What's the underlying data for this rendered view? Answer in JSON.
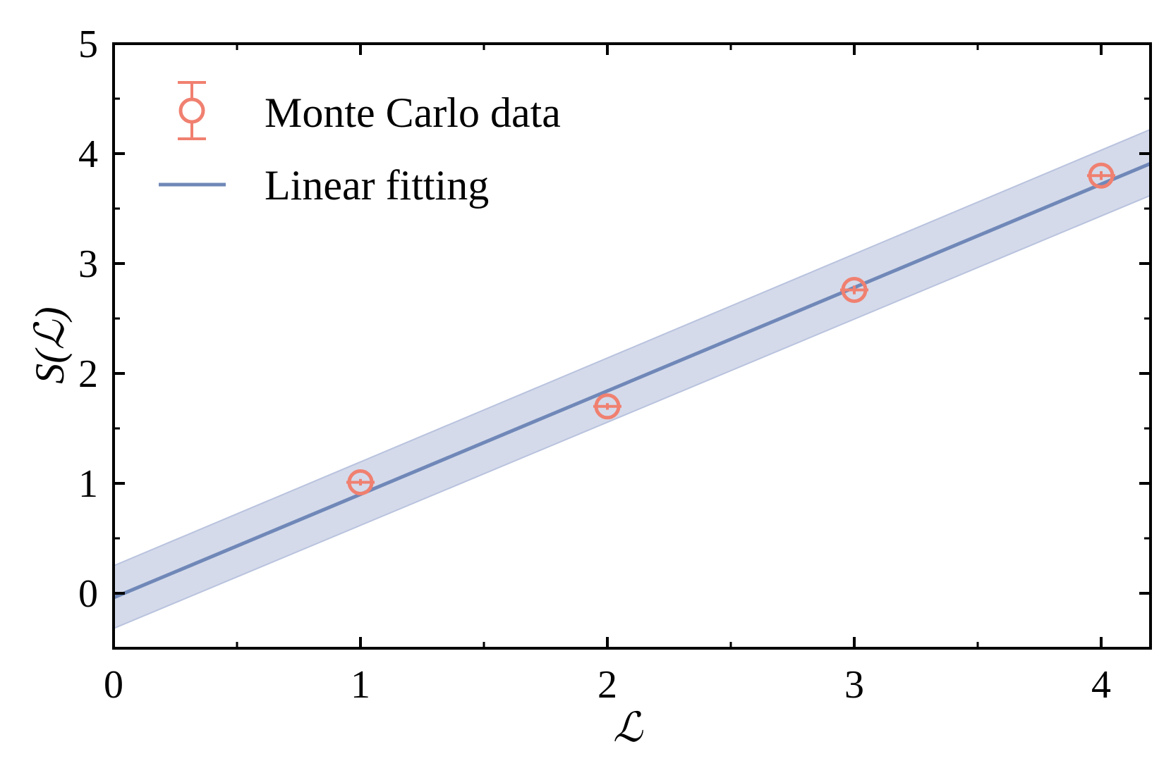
{
  "chart_data": {
    "type": "scatter",
    "title": "",
    "xlabel": "ℒ",
    "ylabel": "S(ℒ)",
    "xlim": [
      0,
      4.2
    ],
    "ylim": [
      -0.5,
      5
    ],
    "xticks": [
      0,
      1,
      2,
      3,
      4
    ],
    "yticks": [
      0,
      1,
      2,
      3,
      4,
      5
    ],
    "grid": false,
    "legend_position": "top-left",
    "series": [
      {
        "name": "Monte Carlo data",
        "kind": "errorbar",
        "marker": "open-circle",
        "color": "#F08070",
        "x": [
          1,
          2,
          3,
          4
        ],
        "y": [
          1.01,
          1.7,
          2.76,
          3.8
        ],
        "yerr": [
          0.03,
          0.03,
          0.04,
          0.04
        ]
      },
      {
        "name": "Linear fitting",
        "kind": "line",
        "color": "#7088B8",
        "band_color": "#C5CDE3",
        "x": [
          0,
          4.2
        ],
        "y": [
          -0.04,
          3.91
        ],
        "band_lower": [
          -0.32,
          3.62
        ],
        "band_upper": [
          0.25,
          4.22
        ]
      }
    ]
  }
}
